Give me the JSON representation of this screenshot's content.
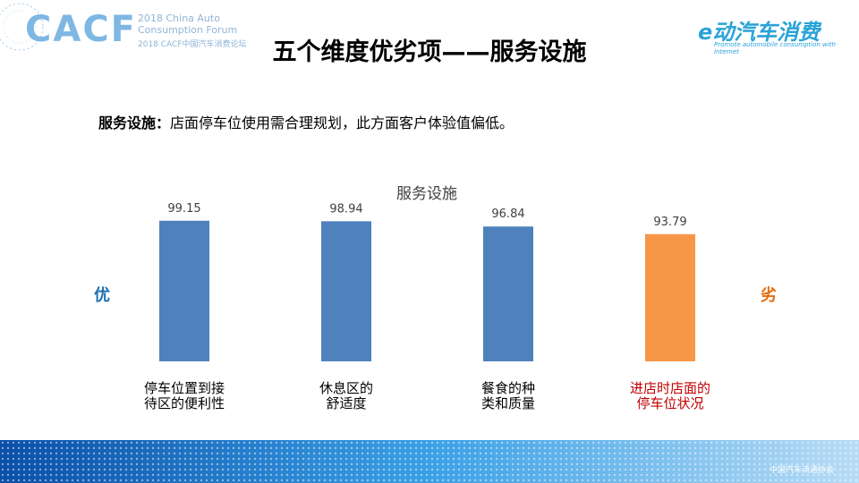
{
  "header": {
    "logo_left": "CACF",
    "logo_left_en": "2018 China Auto\nConsumption Forum",
    "logo_left_cn": "2018 CACF中国汽车消费论坛",
    "title": "五个维度优劣项——服务设施",
    "logo_right": "e动汽车消费",
    "logo_right_sub": "Promote automobile consumption with Internet"
  },
  "note": {
    "label": "服务设施：",
    "text": "店面停车位使用需合理规划，此方面客户体验值偏低。"
  },
  "chart_data": {
    "type": "bar",
    "title": "服务设施",
    "categories": [
      "停车位置到接\n待区的便利性",
      "休息区的\n舒适度",
      "餐食的种\n类和质量",
      "进店时店面的\n停车位状况"
    ],
    "values": [
      99.15,
      98.94,
      96.84,
      93.79
    ],
    "colors": [
      "#4f81bd",
      "#4f81bd",
      "#4f81bd",
      "#f79646"
    ],
    "label_colors": [
      "#000000",
      "#000000",
      "#000000",
      "#c00000"
    ],
    "ylim": [
      43,
      100
    ],
    "annotations": [
      {
        "text": "优",
        "color": "#1f6fb0"
      },
      {
        "text": "劣",
        "color": "#e46c0a"
      }
    ]
  },
  "footer": {
    "logo": "中国汽车流通协会"
  }
}
